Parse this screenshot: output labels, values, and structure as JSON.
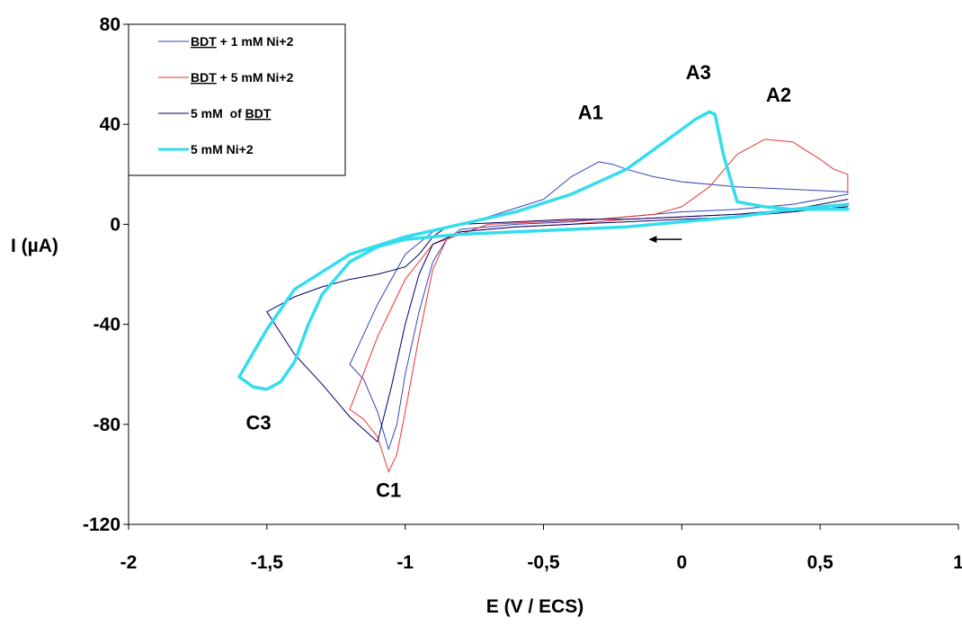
{
  "chart_data": {
    "type": "line",
    "title": "",
    "xlabel": "E (V / ECS)",
    "ylabel": "I (µA)",
    "xlim": [
      -2,
      1
    ],
    "ylim": [
      -120,
      80
    ],
    "x_ticks": [
      -2,
      -1.5,
      -1,
      -0.5,
      0,
      0.5,
      1
    ],
    "x_tick_labels": [
      "-2",
      "-1,5",
      "-1",
      "-0,5",
      "0",
      "0,5",
      "1"
    ],
    "y_ticks": [
      -120,
      -80,
      -40,
      0,
      40,
      80
    ],
    "y_tick_labels": [
      "-120",
      "-80",
      "-40",
      "0",
      "40",
      "80"
    ],
    "grid": false,
    "legend_position": "top-left",
    "legend": [
      {
        "parts": [
          {
            "text": "BDT",
            "underline": true
          },
          {
            "text": " + 1 mM Ni+2",
            "underline": false
          }
        ],
        "color": "#3344bb",
        "thick": false
      },
      {
        "parts": [
          {
            "text": "BDT",
            "underline": true
          },
          {
            "text": " + 5 mM Ni+2",
            "underline": false
          }
        ],
        "color": "#ee3333",
        "thick": false
      },
      {
        "parts": [
          {
            "text": "5 mM  of ",
            "underline": false
          },
          {
            "text": "BDT",
            "underline": true
          }
        ],
        "color": "#000066",
        "thick": false
      },
      {
        "parts": [
          {
            "text": "5 mM Ni+2",
            "underline": false
          }
        ],
        "color": "#33ddee",
        "thick": true
      }
    ],
    "annotations": [
      {
        "text": "A1",
        "x": -0.33,
        "y": 42
      },
      {
        "text": "A3",
        "x": 0.06,
        "y": 58
      },
      {
        "text": "A2",
        "x": 0.35,
        "y": 49
      },
      {
        "text": "C3",
        "x": -1.53,
        "y": -82
      },
      {
        "text": "C1",
        "x": -1.06,
        "y": -109
      }
    ],
    "arrow": {
      "from": [
        0.0,
        -6
      ],
      "to": [
        -0.12,
        -6
      ]
    },
    "series": [
      {
        "name": "BDT + 1 mM Ni+2",
        "color": "#3344bb",
        "x": [
          0.6,
          0.4,
          0.2,
          0.0,
          -0.2,
          -0.4,
          -0.6,
          -0.8,
          -0.85,
          -0.9,
          -0.95,
          -1.0,
          -1.03,
          -1.06,
          -1.1,
          -1.15,
          -1.2,
          -1.1,
          -1.0,
          -0.9,
          -0.7,
          -0.5,
          -0.4,
          -0.3,
          -0.25,
          -0.2,
          -0.1,
          0.0,
          0.2,
          0.4,
          0.6
        ],
        "y": [
          12,
          8,
          6,
          5,
          3,
          1,
          0,
          -2,
          -6,
          -15,
          -35,
          -60,
          -80,
          -90,
          -75,
          -62,
          -56,
          -32,
          -12,
          -3,
          3,
          10,
          19,
          25,
          24,
          22,
          19,
          17,
          15,
          14,
          13
        ]
      },
      {
        "name": "BDT + 5 mM Ni+2",
        "color": "#ee3333",
        "x": [
          0.6,
          0.4,
          0.2,
          0.0,
          -0.2,
          -0.4,
          -0.6,
          -0.8,
          -0.85,
          -0.9,
          -0.95,
          -1.0,
          -1.03,
          -1.06,
          -1.1,
          -1.15,
          -1.2,
          -1.1,
          -1.0,
          -0.9,
          -0.7,
          -0.5,
          -0.3,
          -0.1,
          0.0,
          0.1,
          0.2,
          0.3,
          0.4,
          0.5,
          0.55,
          0.6,
          0.6
        ],
        "y": [
          7,
          5,
          4,
          3,
          2,
          0,
          -1,
          -3,
          -6,
          -18,
          -45,
          -75,
          -92,
          -99,
          -85,
          -78,
          -74,
          -45,
          -22,
          -8,
          0,
          1,
          2,
          4,
          7,
          15,
          28,
          34,
          33,
          26,
          22,
          20,
          12
        ]
      },
      {
        "name": "5 mM  of BDT",
        "color": "#000066",
        "x": [
          0.6,
          0.4,
          0.2,
          0.0,
          -0.2,
          -0.4,
          -0.6,
          -0.8,
          -0.9,
          -0.95,
          -1.0,
          -1.05,
          -1.1,
          -1.2,
          -1.3,
          -1.4,
          -1.5,
          -1.45,
          -1.4,
          -1.3,
          -1.2,
          -1.1,
          -1.0,
          -0.95,
          -0.9,
          -0.85,
          -0.8,
          -0.6,
          -0.4,
          -0.2,
          0.0,
          0.2,
          0.4,
          0.5,
          0.6
        ],
        "y": [
          7,
          5,
          3,
          2,
          1,
          0,
          -1,
          -3,
          -8,
          -20,
          -40,
          -65,
          -87,
          -77,
          -64,
          -52,
          -35,
          -32,
          -29,
          -25,
          -22,
          -20,
          -17,
          -12,
          -5,
          -1,
          0,
          1,
          2,
          2,
          3,
          4,
          6,
          8,
          10
        ]
      },
      {
        "name": "5 mM Ni+2",
        "color": "#33ddee",
        "x": [
          0.6,
          0.4,
          0.2,
          0.0,
          -0.2,
          -0.4,
          -0.6,
          -0.8,
          -1.0,
          -1.1,
          -1.2,
          -1.3,
          -1.35,
          -1.4,
          -1.45,
          -1.5,
          -1.55,
          -1.6,
          -1.5,
          -1.4,
          -1.2,
          -1.0,
          -0.8,
          -0.6,
          -0.4,
          -0.2,
          -0.1,
          0.0,
          0.05,
          0.1,
          0.12,
          0.15,
          0.2,
          0.3,
          0.4,
          0.6
        ],
        "y": [
          8,
          6,
          3,
          1,
          -1,
          -2,
          -3,
          -4,
          -6,
          -9,
          -15,
          -28,
          -40,
          -55,
          -63,
          -66,
          -65,
          -61,
          -42,
          -26,
          -12,
          -5,
          0,
          5,
          12,
          22,
          30,
          38,
          42,
          45,
          44,
          28,
          9,
          7,
          6,
          6
        ]
      }
    ]
  }
}
